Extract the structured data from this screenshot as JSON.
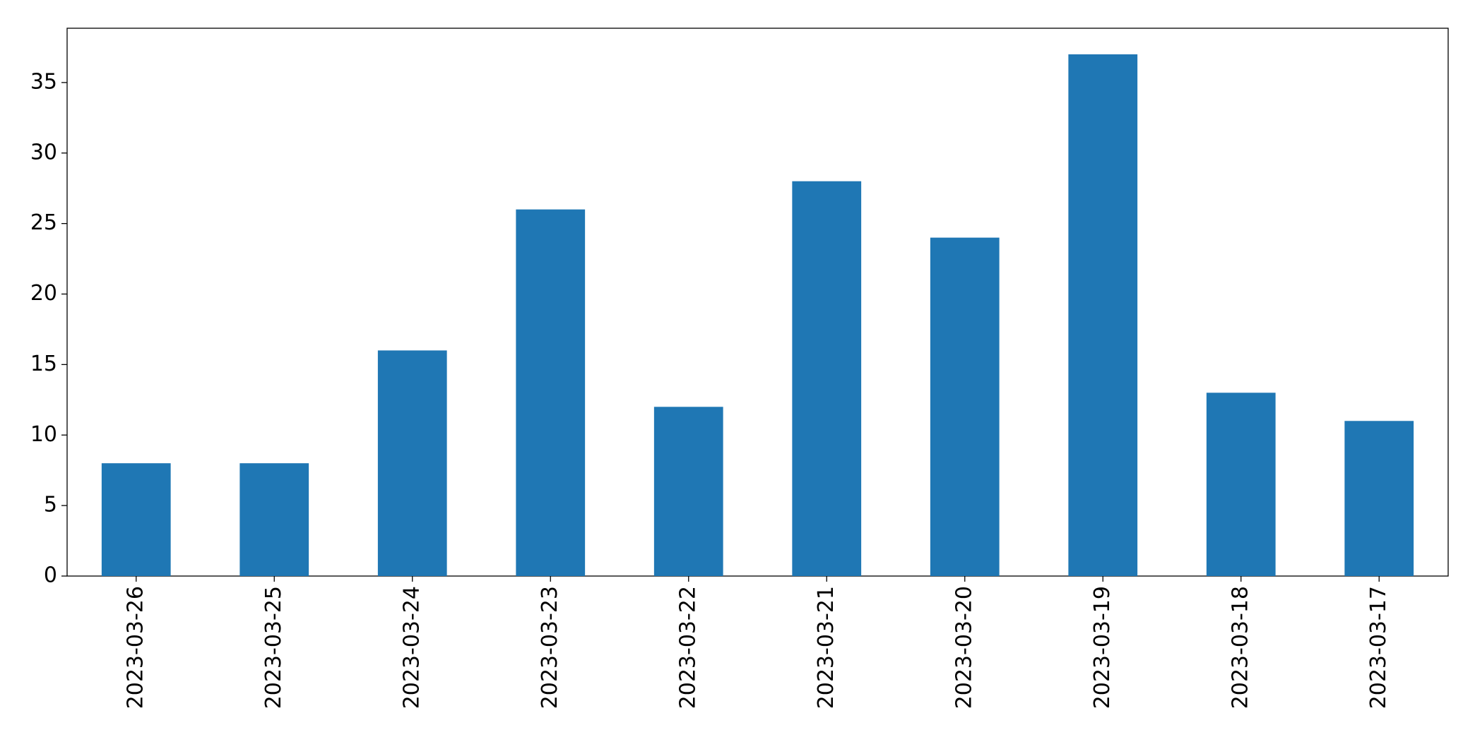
{
  "chart_data": {
    "type": "bar",
    "categories": [
      "2023-03-26",
      "2023-03-25",
      "2023-03-24",
      "2023-03-23",
      "2023-03-22",
      "2023-03-21",
      "2023-03-20",
      "2023-03-19",
      "2023-03-18",
      "2023-03-17"
    ],
    "values": [
      8,
      8,
      16,
      26,
      12,
      28,
      24,
      37,
      13,
      11
    ],
    "color": "#1f77b4",
    "ylim": [
      0,
      38.85
    ],
    "yticks": [
      0,
      5,
      10,
      15,
      20,
      25,
      30,
      35
    ],
    "grid": false
  }
}
